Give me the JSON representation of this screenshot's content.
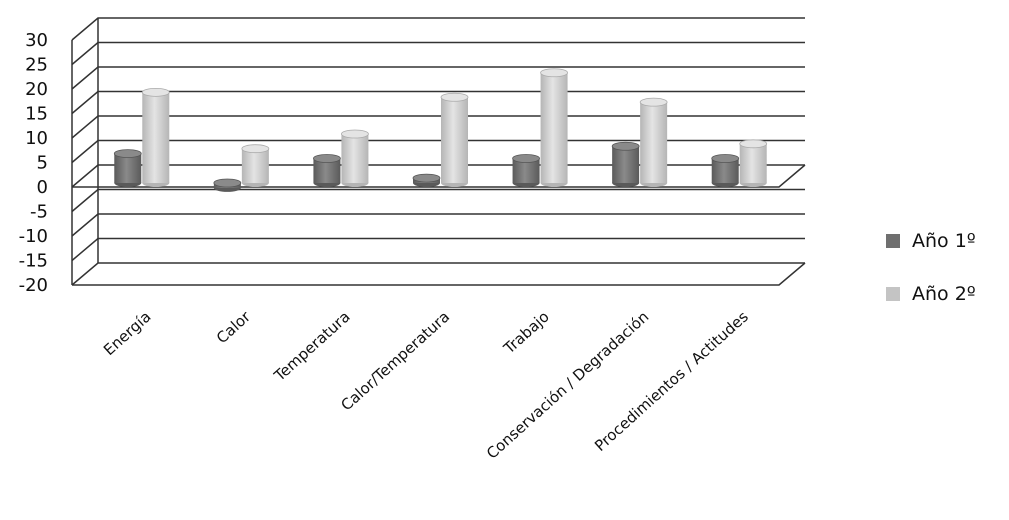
{
  "chart_data": {
    "type": "bar",
    "style": "3d-cylinder",
    "categories": [
      "Energía",
      "Calor",
      "Temperatura",
      "Calor/Temperatura",
      "Trabajo",
      "Conservación / Degradación",
      "Procedimientos / Actitudes"
    ],
    "series": [
      {
        "name": "Año 1º",
        "values": [
          6,
          -1,
          5,
          1,
          5,
          7.5,
          5
        ],
        "color": "#6f6f6f"
      },
      {
        "name": "Año 2º",
        "values": [
          18.5,
          7,
          10,
          17.5,
          22.5,
          16.5,
          8
        ],
        "color": "#c4c4c4"
      }
    ],
    "yticks": [
      30,
      25,
      20,
      15,
      10,
      5,
      0,
      -5,
      -10,
      -15,
      -20
    ],
    "ylim": [
      -20,
      30
    ],
    "grid": true,
    "legend_position": "right"
  }
}
